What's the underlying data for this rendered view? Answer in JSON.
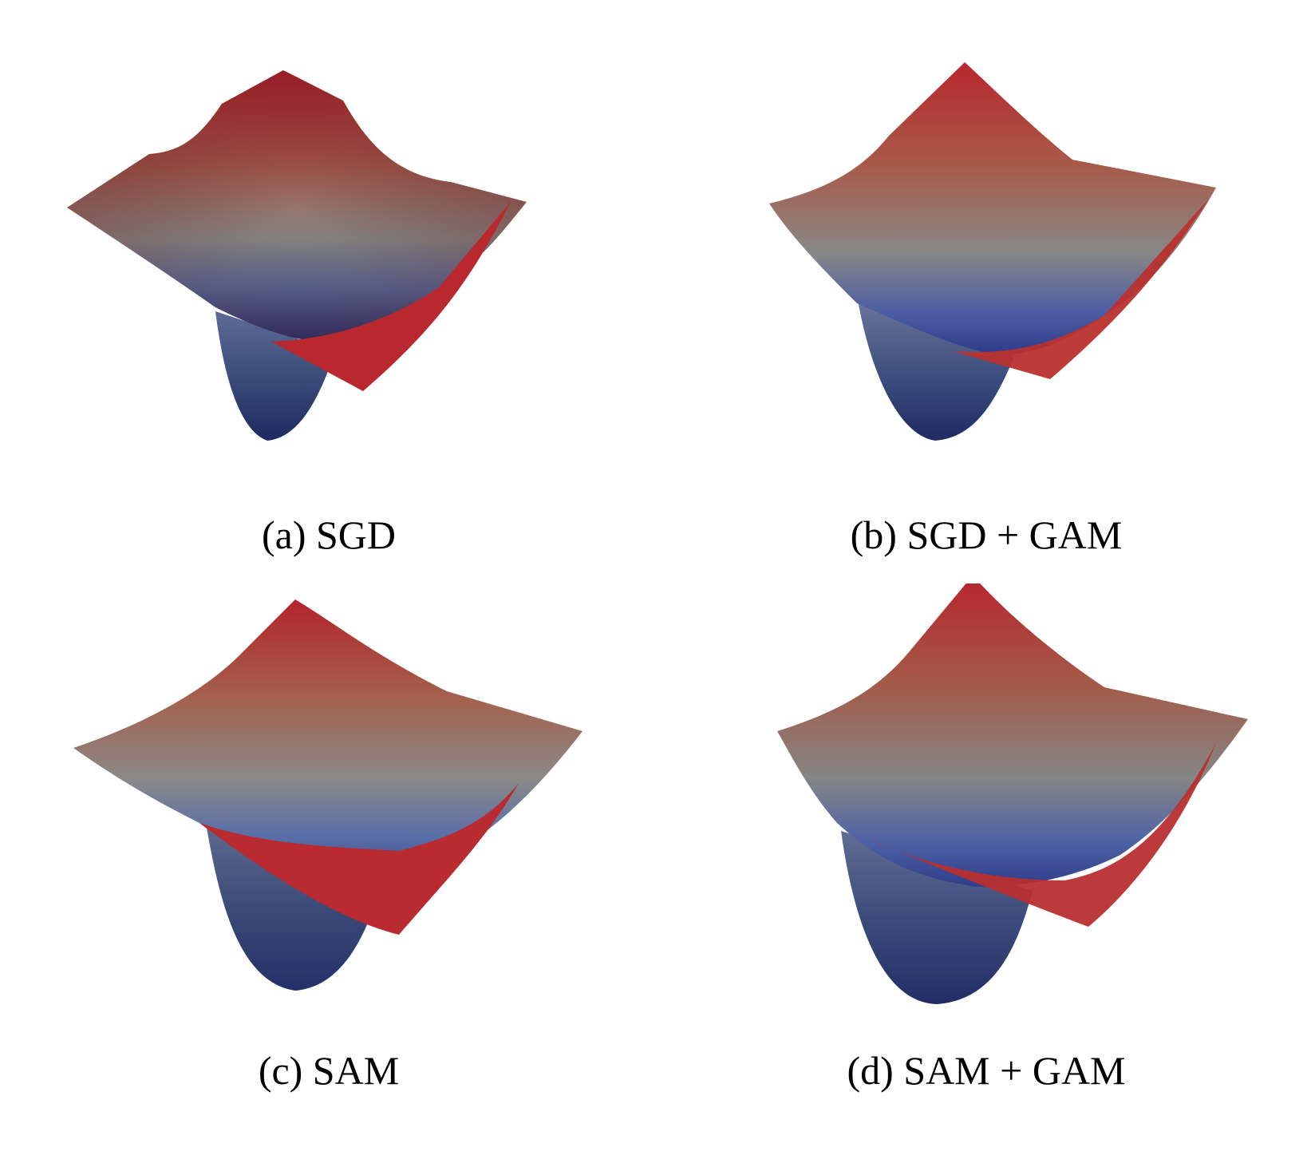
{
  "colors": {
    "high": "#b82530",
    "mid": "#8f8a86",
    "low": "#2c3b86",
    "deep": "#1f2a5e"
  },
  "chart_data": [
    {
      "type": "surface",
      "caption": "(a) SGD",
      "icon": "loss-landscape-surface"
    },
    {
      "type": "surface",
      "caption": "(b) SGD + GAM",
      "icon": "loss-landscape-surface"
    },
    {
      "type": "surface",
      "caption": "(c) SAM",
      "icon": "loss-landscape-surface"
    },
    {
      "type": "surface",
      "caption": "(d) SAM + GAM",
      "icon": "loss-landscape-surface"
    }
  ]
}
